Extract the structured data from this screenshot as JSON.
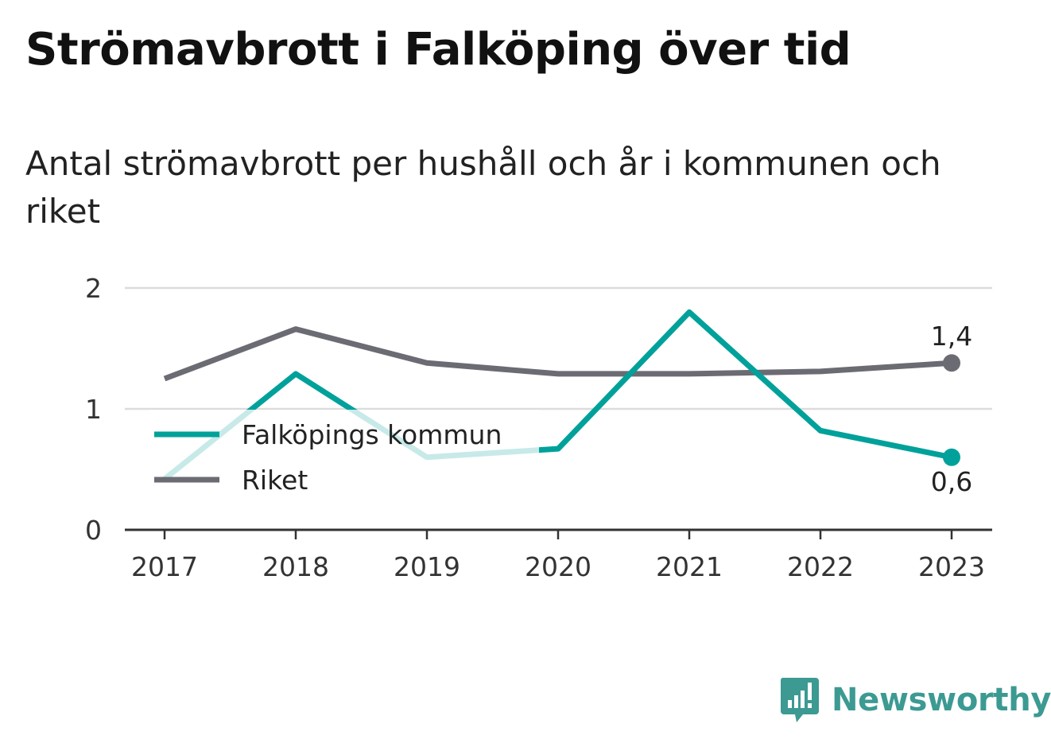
{
  "title": "Strömavbrott i Falköping över tid",
  "subtitle": "Antal strömavbrott per hushåll och år i kommunen och riket",
  "brand": {
    "name": "Newsworthy",
    "icon": "newsworthy-logo-icon",
    "color": "#3c9a92"
  },
  "chart_data": {
    "type": "line",
    "x": [
      "2017",
      "2018",
      "2019",
      "2020",
      "2021",
      "2022",
      "2023"
    ],
    "ylim": [
      0,
      2
    ],
    "yticks": [
      0,
      1,
      2
    ],
    "grid": true,
    "legend": "inside-bottom-left",
    "series": [
      {
        "name": "Falköpings kommun",
        "color": "#00a19a",
        "values": [
          0.42,
          1.29,
          0.6,
          0.67,
          1.8,
          0.82,
          0.6
        ],
        "end_label": "0,6"
      },
      {
        "name": "Riket",
        "color": "#6b6b73",
        "values": [
          1.25,
          1.66,
          1.38,
          1.29,
          1.29,
          1.31,
          1.38
        ],
        "end_label": "1,4"
      }
    ]
  }
}
